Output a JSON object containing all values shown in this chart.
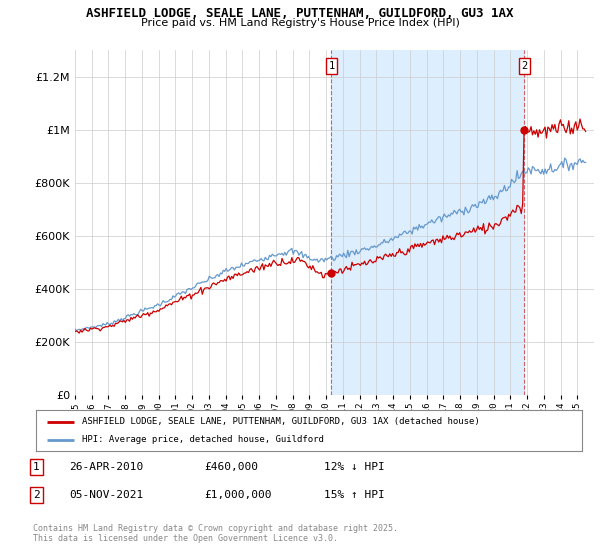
{
  "title_line1": "ASHFIELD LODGE, SEALE LANE, PUTTENHAM, GUILDFORD, GU3 1AX",
  "title_line2": "Price paid vs. HM Land Registry's House Price Index (HPI)",
  "ylim": [
    0,
    1300000
  ],
  "yticks": [
    0,
    200000,
    400000,
    600000,
    800000,
    1000000,
    1200000
  ],
  "x_start_year": 1995,
  "x_end_year": 2025,
  "sale1_year": 2010.32,
  "sale1_price": 460000,
  "sale2_year": 2021.84,
  "sale2_price": 1000000,
  "legend_label_red": "ASHFIELD LODGE, SEALE LANE, PUTTENHAM, GUILDFORD, GU3 1AX (detached house)",
  "legend_label_blue": "HPI: Average price, detached house, Guildford",
  "annotation1_text": "26-APR-2010",
  "annotation1_price": "£460,000",
  "annotation1_hpi": "12% ↓ HPI",
  "annotation2_text": "05-NOV-2021",
  "annotation2_price": "£1,000,000",
  "annotation2_hpi": "15% ↑ HPI",
  "footer": "Contains HM Land Registry data © Crown copyright and database right 2025.\nThis data is licensed under the Open Government Licence v3.0.",
  "red_color": "#cc0000",
  "blue_color": "#6699cc",
  "shade_color": "#ddeeff",
  "bg_color": "#ffffff",
  "grid_color": "#cccccc"
}
